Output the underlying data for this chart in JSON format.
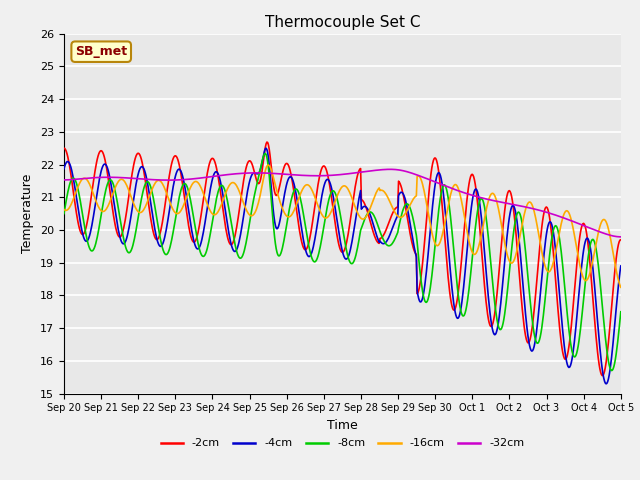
{
  "title": "Thermocouple Set C",
  "xlabel": "Time",
  "ylabel": "Temperature",
  "ylim": [
    15.0,
    26.0
  ],
  "yticks": [
    15.0,
    16.0,
    17.0,
    18.0,
    19.0,
    20.0,
    21.0,
    22.0,
    23.0,
    24.0,
    25.0,
    26.0
  ],
  "colors": {
    "-2cm": "#ff0000",
    "-4cm": "#0000cc",
    "-8cm": "#00cc00",
    "-16cm": "#ffaa00",
    "-32cm": "#cc00cc"
  },
  "tick_labels": [
    "Sep 20",
    "Sep 21",
    "Sep 22",
    "Sep 23",
    "Sep 24",
    "Sep 25",
    "Sep 26",
    "Sep 27",
    "Sep 28",
    "Sep 29",
    "Sep 30",
    "Oct 1",
    "Oct 2",
    "Oct 3",
    "Oct 4",
    "Oct 5"
  ],
  "annotation_text": "SB_met",
  "bg_color": "#e8e8e8",
  "grid_color": "#ffffff",
  "fig_bg": "#f0f0f0"
}
